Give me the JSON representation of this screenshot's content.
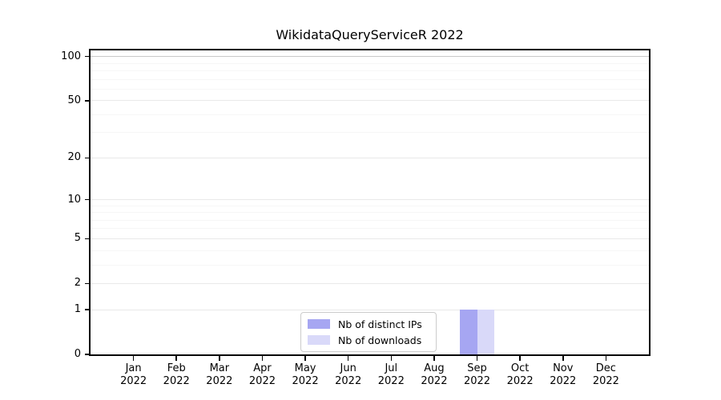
{
  "title": "WikidataQueryServiceR 2022",
  "chart_data": {
    "type": "bar",
    "title": "WikidataQueryServiceR 2022",
    "categories": [
      {
        "month": "Jan",
        "year": "2022"
      },
      {
        "month": "Feb",
        "year": "2022"
      },
      {
        "month": "Mar",
        "year": "2022"
      },
      {
        "month": "Apr",
        "year": "2022"
      },
      {
        "month": "May",
        "year": "2022"
      },
      {
        "month": "Jun",
        "year": "2022"
      },
      {
        "month": "Jul",
        "year": "2022"
      },
      {
        "month": "Aug",
        "year": "2022"
      },
      {
        "month": "Sep",
        "year": "2022"
      },
      {
        "month": "Oct",
        "year": "2022"
      },
      {
        "month": "Nov",
        "year": "2022"
      },
      {
        "month": "Dec",
        "year": "2022"
      }
    ],
    "series": [
      {
        "name": "Nb of distinct IPs",
        "color": "#a6a6f2",
        "values": [
          0,
          0,
          0,
          0,
          0,
          0,
          0,
          0,
          1,
          0,
          0,
          0
        ]
      },
      {
        "name": "Nb of downloads",
        "color": "#d9d9f9",
        "values": [
          0,
          0,
          0,
          0,
          0,
          0,
          0,
          0,
          1,
          0,
          0,
          0
        ]
      }
    ],
    "xlabel": "",
    "ylabel": "",
    "yscale": "log1p",
    "ylim": [
      0,
      110
    ],
    "yticks": [
      0,
      1,
      2,
      5,
      10,
      20,
      50,
      100
    ],
    "yticks_minor": [
      3,
      4,
      6,
      7,
      8,
      9,
      30,
      40,
      60,
      70,
      80,
      90
    ],
    "grid": true,
    "legend_position": "bottom-center-inside",
    "colors": {
      "grid_major": "#e9e9e9",
      "grid_top": "#c8c8c8",
      "grid_minor": "#f6f6f6",
      "spine": "#000000",
      "text": "#000000"
    }
  }
}
